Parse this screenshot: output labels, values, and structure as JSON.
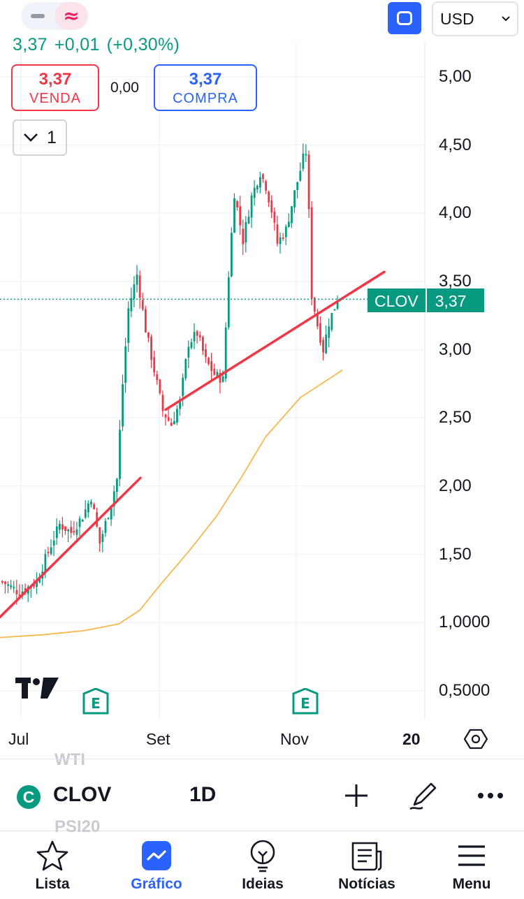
{
  "header": {
    "quote_price": "3,37",
    "quote_change": "+0,01",
    "quote_change_pct": "(+0,30%)",
    "sell_price": "3,37",
    "sell_label": "VENDA",
    "spread": "0,00",
    "buy_price": "3,37",
    "buy_label": "COMPRA",
    "quantity": "1",
    "currency": "USD",
    "top_toggle_icons": [
      "minus-icon",
      "wave-icon"
    ],
    "fullscreen_icon": "square-icon"
  },
  "chart_data": {
    "type": "candlestick",
    "symbol_tag": "CLOV",
    "last_price_label": "3,37",
    "y_tick_labels": [
      "5,00",
      "4,50",
      "4,00",
      "3,50",
      "3,00",
      "2,50",
      "2,00",
      "1,50",
      "1,0000",
      "0,5000"
    ],
    "y_tick_values": [
      5.0,
      4.5,
      4.0,
      3.5,
      3.0,
      2.5,
      2.0,
      1.5,
      1.0,
      0.5
    ],
    "x_tick_labels": [
      "Jul",
      "Set",
      "Nov",
      "20"
    ],
    "ylim": [
      0.3,
      5.5
    ],
    "colors": {
      "up": "#089981",
      "down": "#f23645",
      "ma": "#f7b84e",
      "trendline": "#f23645",
      "grid": "#f0f3fa"
    },
    "trendlines": [
      {
        "from": [
          0,
          1.04
        ],
        "to": [
          105,
          2.06
        ]
      },
      {
        "from": [
          132,
          2.56
        ],
        "to": [
          290,
          3.57
        ]
      }
    ],
    "moving_average": [
      0.89,
      0.91,
      0.94,
      0.99,
      1.09,
      1.28,
      1.52,
      1.78,
      2.06,
      2.36,
      2.65,
      2.85
    ],
    "events": [
      "earnings",
      "earnings"
    ]
  },
  "toolbar": {
    "symbol_badge": "C",
    "symbol": "CLOV",
    "interval": "1D",
    "ghost_top": "WTI",
    "ghost_bottom": "PSI20"
  },
  "tabs": [
    {
      "label": "Lista",
      "icon": "star-icon"
    },
    {
      "label": "Gráfico",
      "icon": "chart-icon"
    },
    {
      "label": "Ideias",
      "icon": "lightbulb-icon"
    },
    {
      "label": "Notícias",
      "icon": "news-icon"
    },
    {
      "label": "Menu",
      "icon": "menu-icon"
    }
  ]
}
